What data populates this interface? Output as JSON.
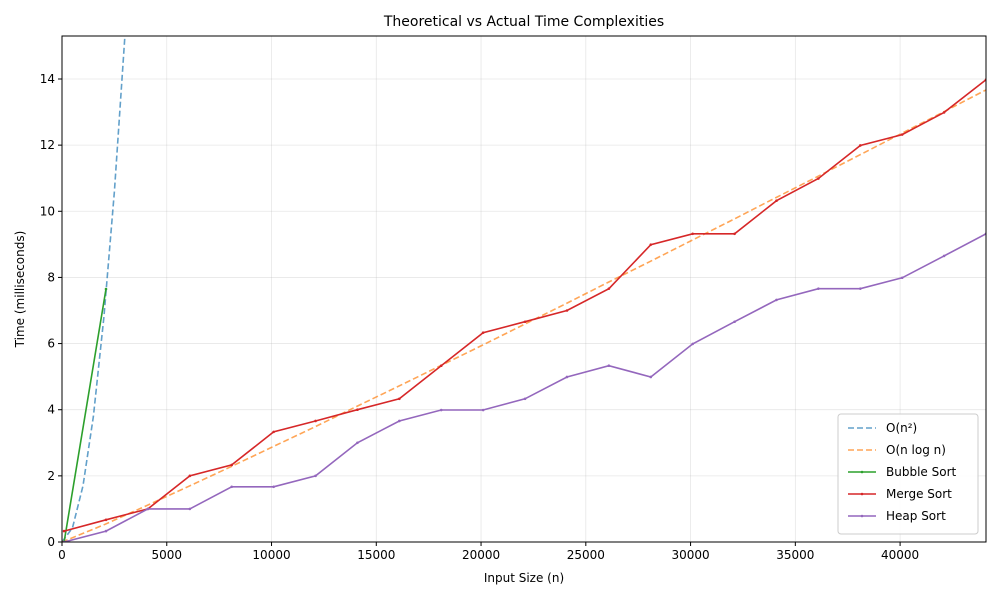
{
  "chart_data": {
    "type": "line",
    "title": "Theoretical vs Actual Time Complexities",
    "xlabel": "Input Size (n)",
    "ylabel": "Time (milliseconds)",
    "xlim": [
      0,
      44100
    ],
    "ylim": [
      0,
      15.3
    ],
    "xticks": [
      0,
      5000,
      10000,
      15000,
      20000,
      25000,
      30000,
      35000,
      40000
    ],
    "yticks": [
      0,
      2,
      4,
      6,
      8,
      10,
      12,
      14
    ],
    "grid": true,
    "legend_position": "lower-right",
    "series": [
      {
        "name": "O(n²)",
        "style": "dashed",
        "color": "#1f77b4",
        "x": [
          0,
          500,
          1000,
          1500,
          2000,
          2500,
          3000
        ],
        "y": [
          0,
          0.43,
          1.7,
          3.8,
          6.8,
          10.6,
          15.3
        ]
      },
      {
        "name": "O(n log n)",
        "style": "dashed",
        "color": "#ff7f0e",
        "x": [
          0,
          2000,
          4000,
          6000,
          8000,
          10000,
          12000,
          14000,
          16000,
          18000,
          20000,
          22000,
          24000,
          26000,
          28000,
          30000,
          32000,
          34000,
          36000,
          38000,
          40000,
          42000,
          44100
        ],
        "y": [
          0,
          0.52,
          1.09,
          1.67,
          2.26,
          2.86,
          3.46,
          4.08,
          4.69,
          5.31,
          5.93,
          6.56,
          7.19,
          7.83,
          8.46,
          9.1,
          9.74,
          10.39,
          11.03,
          11.68,
          12.33,
          12.98,
          13.67
        ]
      },
      {
        "name": "Bubble Sort",
        "style": "solid",
        "color": "#2ca02c",
        "x": [
          100,
          2100
        ],
        "y": [
          0.0,
          7.65
        ]
      },
      {
        "name": "Merge Sort",
        "style": "solid",
        "color": "#d62728",
        "x": [
          100,
          2100,
          4100,
          6100,
          8100,
          10100,
          12100,
          14100,
          16100,
          18100,
          20100,
          22100,
          24100,
          26100,
          28100,
          30100,
          32100,
          34100,
          36100,
          38100,
          40100,
          42100,
          44100
        ],
        "y": [
          0.33,
          0.67,
          1.0,
          2.0,
          2.33,
          3.33,
          3.66,
          4.0,
          4.33,
          5.33,
          6.33,
          6.66,
          7.0,
          7.66,
          8.99,
          9.32,
          9.32,
          10.32,
          10.99,
          11.99,
          12.32,
          12.99,
          13.98
        ]
      },
      {
        "name": "Heap Sort",
        "style": "solid",
        "color": "#9467bd",
        "x": [
          100,
          2100,
          4100,
          6100,
          8100,
          10100,
          12100,
          14100,
          16100,
          18100,
          20100,
          22100,
          24100,
          26100,
          28100,
          30100,
          32100,
          34100,
          36100,
          38100,
          40100,
          42100,
          44100
        ],
        "y": [
          0.0,
          0.33,
          1.0,
          1.0,
          1.67,
          1.67,
          2.0,
          3.0,
          3.66,
          3.99,
          3.99,
          4.33,
          4.99,
          5.33,
          4.99,
          5.99,
          6.66,
          7.32,
          7.66,
          7.66,
          7.99,
          8.65,
          9.32
        ]
      }
    ]
  }
}
